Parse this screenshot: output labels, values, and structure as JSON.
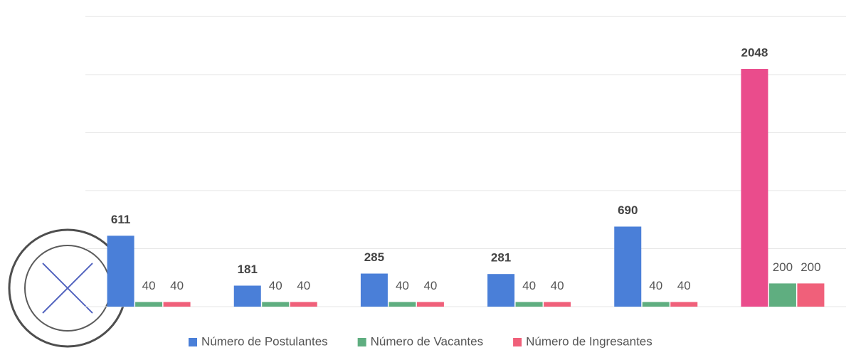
{
  "chart_data": {
    "type": "bar",
    "categories": [
      null,
      null,
      null,
      null,
      null,
      null
    ],
    "series": [
      {
        "name": "Número de Postulantes",
        "color": "#4a7fd8",
        "point_colors": [
          "#4a7fd8",
          "#4a7fd8",
          "#4a7fd8",
          "#4a7fd8",
          "#4a7fd8",
          "#ea4c8c"
        ],
        "values": [
          611,
          181,
          285,
          281,
          690,
          2048
        ]
      },
      {
        "name": "Número de Vacantes",
        "color": "#5fae80",
        "values": [
          40,
          40,
          40,
          40,
          40,
          200
        ]
      },
      {
        "name": "Número de Ingresantes",
        "color": "#f0607a",
        "values": [
          40,
          40,
          40,
          40,
          40,
          200
        ]
      }
    ],
    "ylim": [
      0,
      2600
    ],
    "yticks": [
      0,
      500,
      1000,
      1500,
      2000,
      2500
    ],
    "grid": true,
    "show_ytick_labels": false,
    "legend": "bottom"
  }
}
